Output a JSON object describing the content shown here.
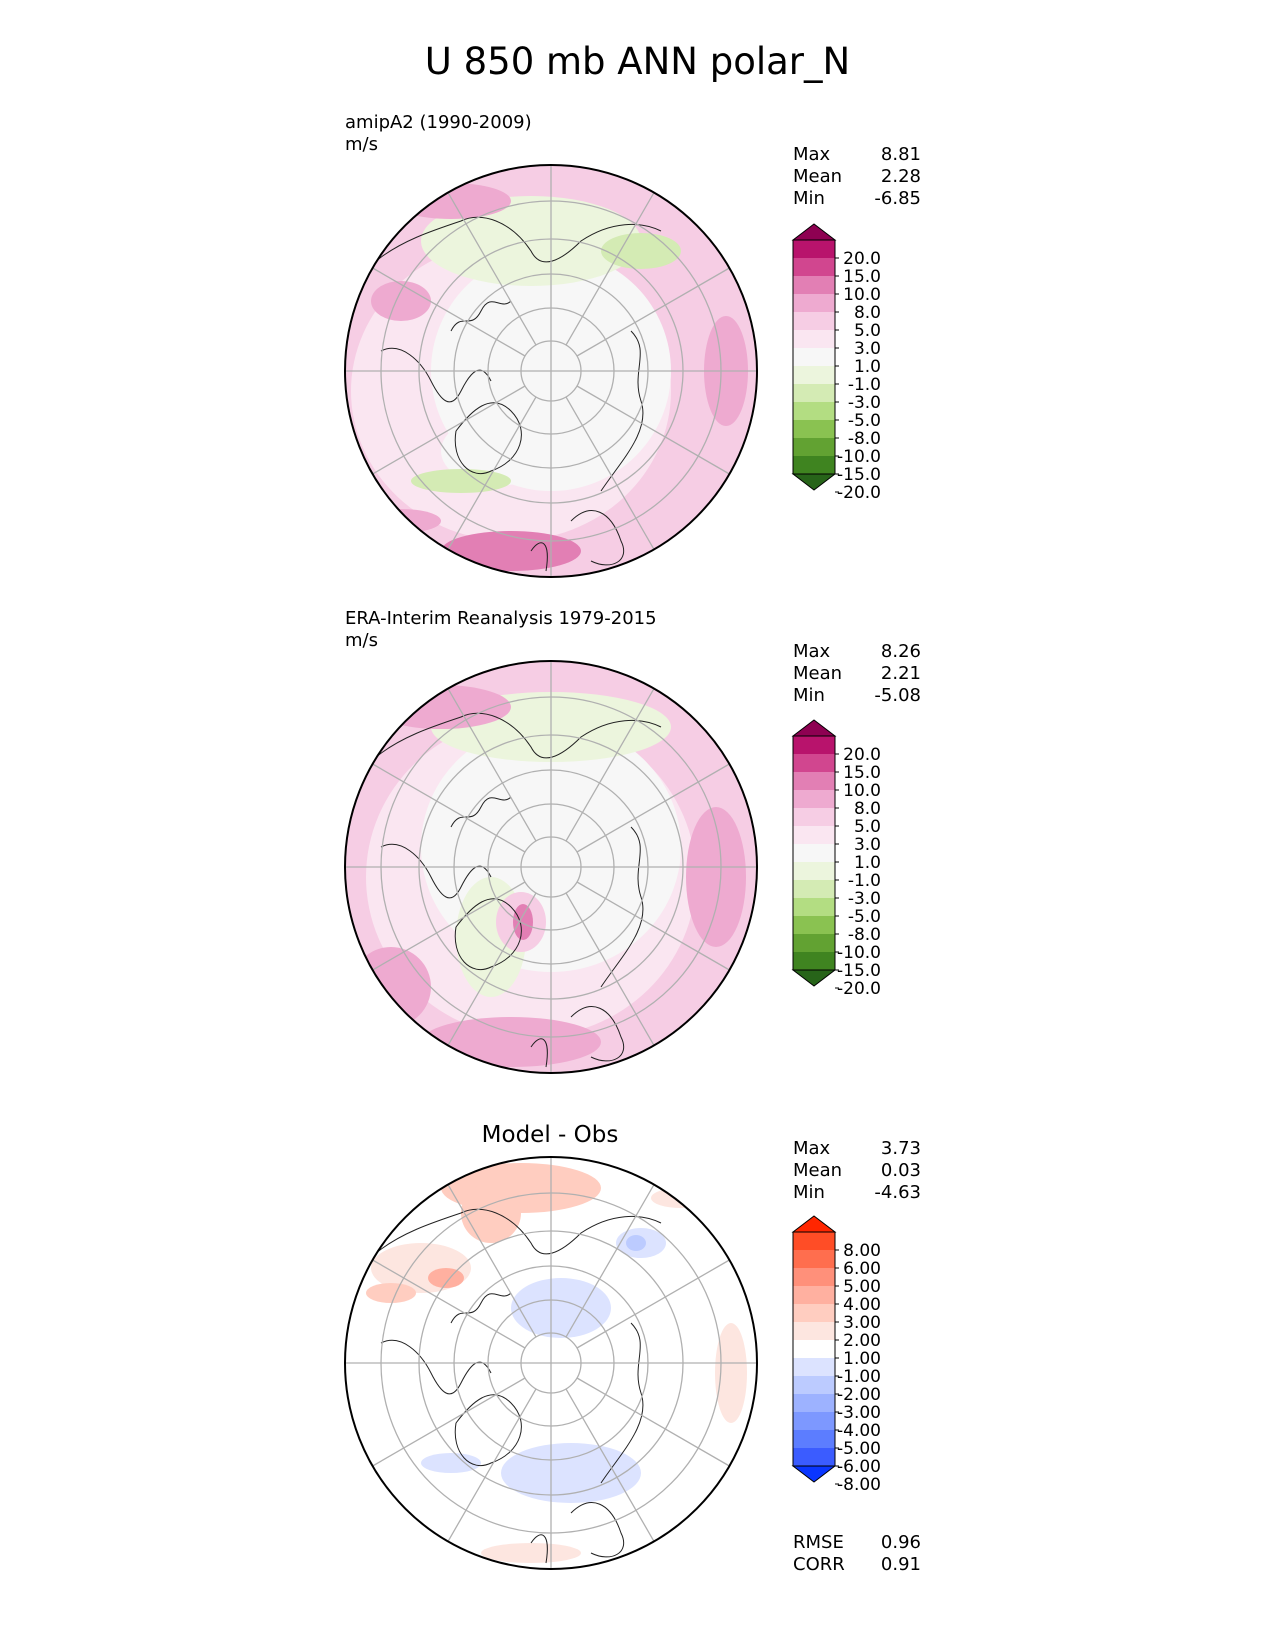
{
  "figure": {
    "title": "U 850 mb ANN polar_N"
  },
  "panels": [
    {
      "id": "test",
      "name": "amipA2 (1990-2009)",
      "units": "m/s",
      "stats": [
        {
          "label": "Max",
          "value": "8.81"
        },
        {
          "label": "Mean",
          "value": "2.28"
        },
        {
          "label": "Min",
          "value": "-6.85"
        }
      ]
    },
    {
      "id": "reference",
      "name": "ERA-Interim Reanalysis 1979-2015",
      "units": "m/s",
      "stats": [
        {
          "label": "Max",
          "value": "8.26"
        },
        {
          "label": "Mean",
          "value": "2.21"
        },
        {
          "label": "Min",
          "value": "-5.08"
        }
      ]
    },
    {
      "id": "difference",
      "title": "Model - Obs",
      "stats": [
        {
          "label": "Max",
          "value": "3.73"
        },
        {
          "label": "Mean",
          "value": "0.03"
        },
        {
          "label": "Min",
          "value": "-4.63"
        }
      ],
      "metrics": [
        {
          "label": "RMSE",
          "value": "0.96"
        },
        {
          "label": "CORR",
          "value": "0.91"
        }
      ]
    }
  ],
  "chart_data": [
    {
      "type": "heatmap",
      "projection": "north polar stereographic",
      "panel": "amipA2 (1990-2009)",
      "units": "m/s",
      "colorbar": {
        "tick_labels": [
          "20.0",
          "15.0",
          "10.0",
          "8.0",
          "5.0",
          "3.0",
          "1.0",
          "-1.0",
          "-3.0",
          "-5.0",
          "-8.0",
          "-10.0",
          "-15.0",
          "-20.0"
        ],
        "colors": [
          "#8e0152",
          "#b8136c",
          "#d1468f",
          "#e27fb4",
          "#eeaad0",
          "#f6cde4",
          "#fae6f1",
          "#f7f7f7",
          "#ecf5dd",
          "#d4ebb4",
          "#b3dd82",
          "#8ac251",
          "#62a232",
          "#3f8420",
          "#276419"
        ],
        "extend": "both"
      },
      "stats": {
        "max": 8.81,
        "mean": 2.28,
        "min": -6.85
      }
    },
    {
      "type": "heatmap",
      "projection": "north polar stereographic",
      "panel": "ERA-Interim Reanalysis 1979-2015",
      "units": "m/s",
      "colorbar": {
        "tick_labels": [
          "20.0",
          "15.0",
          "10.0",
          "8.0",
          "5.0",
          "3.0",
          "1.0",
          "-1.0",
          "-3.0",
          "-5.0",
          "-8.0",
          "-10.0",
          "-15.0",
          "-20.0"
        ],
        "colors": [
          "#8e0152",
          "#b8136c",
          "#d1468f",
          "#e27fb4",
          "#eeaad0",
          "#f6cde4",
          "#fae6f1",
          "#f7f7f7",
          "#ecf5dd",
          "#d4ebb4",
          "#b3dd82",
          "#8ac251",
          "#62a232",
          "#3f8420",
          "#276419"
        ],
        "extend": "both"
      },
      "stats": {
        "max": 8.26,
        "mean": 2.21,
        "min": -5.08
      }
    },
    {
      "type": "heatmap",
      "projection": "north polar stereographic",
      "panel": "Model - Obs",
      "colorbar": {
        "tick_labels": [
          "8.00",
          "6.00",
          "5.00",
          "4.00",
          "3.00",
          "2.00",
          "1.00",
          "-1.00",
          "-2.00",
          "-3.00",
          "-4.00",
          "-5.00",
          "-6.00",
          "-8.00"
        ],
        "colors": [
          "#ff2600",
          "#ff4d26",
          "#ff6e4e",
          "#ff907a",
          "#ffb0a0",
          "#ffcdc0",
          "#fde6e0",
          "#ffffff",
          "#dce3ff",
          "#bccbff",
          "#9db2ff",
          "#7d98ff",
          "#5c7dff",
          "#3b5cff",
          "#0a36ff"
        ],
        "extend": "both"
      },
      "stats": {
        "max": 3.73,
        "mean": 0.03,
        "min": -4.63
      },
      "rmse": 0.96,
      "corr": 0.91
    }
  ]
}
